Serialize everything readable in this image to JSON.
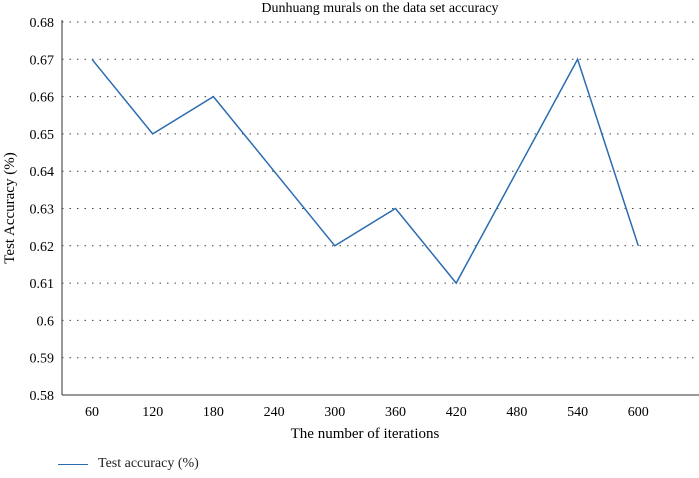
{
  "chart_data": {
    "type": "line",
    "title": "Dunhuang murals on the data set accuracy",
    "xlabel": "The number of iterations",
    "ylabel": "Test Accuracy (%)",
    "categories": [
      "60",
      "120",
      "180",
      "240",
      "300",
      "360",
      "420",
      "480",
      "540",
      "600"
    ],
    "x": [
      60,
      120,
      180,
      240,
      300,
      360,
      420,
      480,
      540,
      600
    ],
    "ylim": [
      0.58,
      0.68
    ],
    "yticks": [
      "0.58",
      "0.59",
      "0.6",
      "0.61",
      "0.62",
      "0.63",
      "0.64",
      "0.65",
      "0.66",
      "0.67",
      "0.68"
    ],
    "grid": "horizontal-dotted",
    "legend_position": "bottom-left",
    "series": [
      {
        "name": "Test accuracy (%)",
        "color": "#2b6cb0",
        "values": [
          0.67,
          0.65,
          0.66,
          0.64,
          0.62,
          0.63,
          0.61,
          0.64,
          0.67,
          0.62
        ]
      }
    ]
  }
}
